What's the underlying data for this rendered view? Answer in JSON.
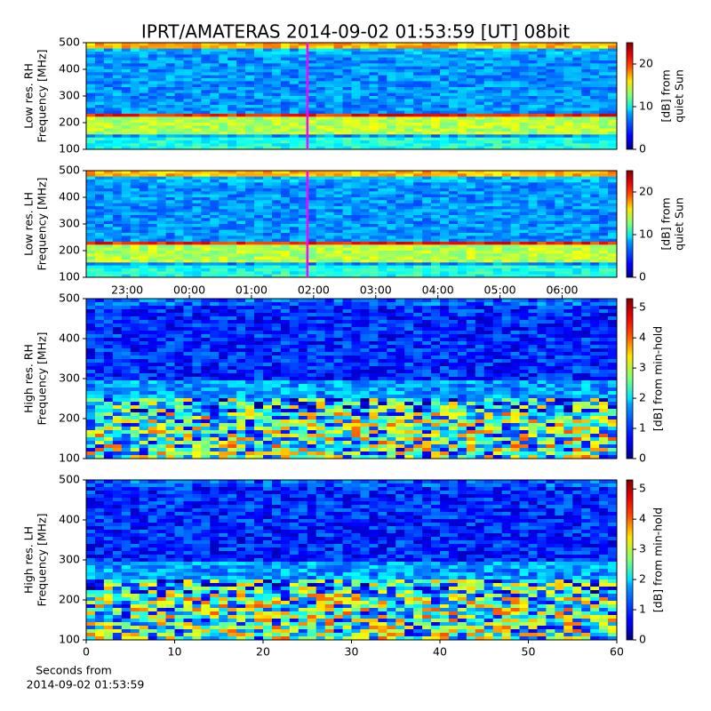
{
  "figure": {
    "title": "IPRT/AMATERAS 2014-09-02 01:53:59 [UT]   08bit"
  },
  "chart_data": [
    {
      "type": "spectrogram",
      "ylabel": [
        "Low res. RH",
        "Frequency [MHz]"
      ],
      "ylim": [
        100,
        500
      ],
      "yticks": [
        100,
        200,
        300,
        400,
        500
      ],
      "xlim": [
        -1.66,
        6.88
      ],
      "marker_x": 1.9,
      "marker_color": "#ff00ff",
      "colorbar": {
        "label": [
          "[dB] from",
          "quiet Sun"
        ],
        "lim": [
          0,
          25
        ],
        "ticks": [
          0,
          10,
          20
        ]
      }
    },
    {
      "type": "spectrogram",
      "ylabel": [
        "Low res. LH",
        "Frequency [MHz]"
      ],
      "ylim": [
        100,
        500
      ],
      "yticks": [
        100,
        200,
        300,
        400,
        500
      ],
      "xlim": [
        -1.66,
        6.88
      ],
      "marker_x": 1.9,
      "marker_color": "#ff00ff",
      "colorbar": {
        "label": [
          "[dB] from",
          "quiet Sun"
        ],
        "lim": [
          0,
          25
        ],
        "ticks": [
          0,
          10,
          20
        ]
      }
    },
    {
      "type": "spectrogram",
      "ylabel": [
        "High res. RH",
        "Frequency [MHz]"
      ],
      "ylim": [
        100,
        500
      ],
      "yticks": [
        100,
        200,
        300,
        400,
        500
      ],
      "top_xlim": [
        -1.66,
        6.88
      ],
      "top_xticks": [
        {
          "value": -1,
          "label": "23:00"
        },
        {
          "value": 0,
          "label": "00:00"
        },
        {
          "value": 1,
          "label": "01:00"
        },
        {
          "value": 2,
          "label": "02:00"
        },
        {
          "value": 3,
          "label": "03:00"
        },
        {
          "value": 4,
          "label": "04:00"
        },
        {
          "value": 5,
          "label": "05:00"
        },
        {
          "value": 6,
          "label": "06:00"
        }
      ],
      "colorbar": {
        "label": [
          "[dB] from min-hold"
        ],
        "lim": [
          0,
          5.3
        ],
        "ticks": [
          0,
          1,
          2,
          3,
          4,
          5
        ]
      }
    },
    {
      "type": "spectrogram",
      "ylabel": [
        "High res. LH",
        "Frequency [MHz]"
      ],
      "ylim": [
        100,
        500
      ],
      "yticks": [
        100,
        200,
        300,
        400,
        500
      ],
      "xlim": [
        0,
        60
      ],
      "xticks": [
        0,
        10,
        20,
        30,
        40,
        50,
        60
      ],
      "xlabel": [
        "Seconds from",
        "2014-09-02 01:53:59"
      ],
      "colorbar": {
        "label": [
          "[dB] from min-hold"
        ],
        "lim": [
          0,
          5.3
        ],
        "ticks": [
          0,
          1,
          2,
          3,
          4,
          5
        ]
      }
    }
  ]
}
